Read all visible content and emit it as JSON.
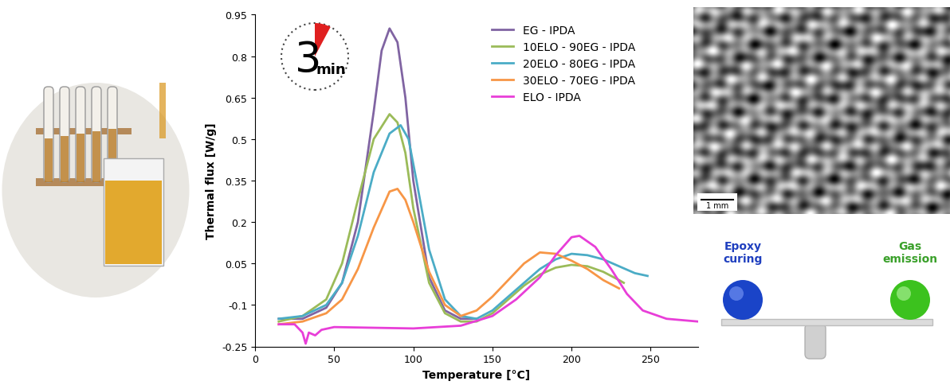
{
  "chart_data": {
    "type": "line",
    "x_label": "Temperature [°C]",
    "y_label": "Thermal flux [W/g]",
    "xlim": [
      0,
      280
    ],
    "xticks": [
      0,
      50,
      100,
      150,
      200,
      250
    ],
    "ylim": [
      -0.25,
      0.95
    ],
    "yticks": [
      -0.25,
      -0.1,
      0.05,
      0.2,
      0.35,
      0.5,
      0.65,
      0.8,
      0.95
    ],
    "grid": false,
    "legend": "upper right",
    "series": [
      {
        "name": "EG - IPDA",
        "color": "#8064a2",
        "x": [
          15,
          30,
          45,
          55,
          65,
          75,
          80,
          85,
          90,
          95,
          100,
          110,
          120,
          130,
          140
        ],
        "values": [
          -0.15,
          -0.15,
          -0.11,
          -0.02,
          0.2,
          0.6,
          0.82,
          0.9,
          0.85,
          0.65,
          0.35,
          0.0,
          -0.12,
          -0.15,
          -0.15
        ]
      },
      {
        "name": "10ELO - 90EG - IPDA",
        "color": "#9bbb59",
        "x": [
          15,
          30,
          45,
          55,
          65,
          75,
          85,
          90,
          95,
          100,
          110,
          120,
          130,
          140,
          150,
          160,
          170,
          180,
          190,
          200,
          210,
          220,
          230,
          233
        ],
        "values": [
          -0.16,
          -0.14,
          -0.08,
          0.05,
          0.28,
          0.5,
          0.59,
          0.56,
          0.45,
          0.25,
          -0.02,
          -0.13,
          -0.16,
          -0.16,
          -0.13,
          -0.08,
          -0.03,
          0.01,
          0.035,
          0.045,
          0.04,
          0.02,
          -0.01,
          -0.02
        ]
      },
      {
        "name": "20ELO - 80EG - IPDA",
        "color": "#4bacc6",
        "x": [
          15,
          30,
          45,
          55,
          65,
          75,
          85,
          92,
          97,
          102,
          110,
          120,
          130,
          140,
          150,
          160,
          170,
          180,
          190,
          200,
          210,
          220,
          230,
          240,
          248
        ],
        "values": [
          -0.15,
          -0.14,
          -0.1,
          -0.02,
          0.15,
          0.38,
          0.52,
          0.55,
          0.5,
          0.35,
          0.1,
          -0.08,
          -0.14,
          -0.15,
          -0.12,
          -0.07,
          -0.02,
          0.03,
          0.065,
          0.085,
          0.08,
          0.065,
          0.04,
          0.015,
          0.005
        ]
      },
      {
        "name": "30ELO - 70EG - IPDA",
        "color": "#f79646",
        "x": [
          15,
          30,
          45,
          55,
          65,
          75,
          85,
          90,
          95,
          100,
          110,
          120,
          130,
          140,
          150,
          160,
          170,
          180,
          190,
          200,
          210,
          220,
          230
        ],
        "values": [
          -0.17,
          -0.16,
          -0.13,
          -0.08,
          0.03,
          0.18,
          0.31,
          0.32,
          0.28,
          0.2,
          0.02,
          -0.1,
          -0.14,
          -0.12,
          -0.07,
          -0.01,
          0.05,
          0.09,
          0.085,
          0.06,
          0.03,
          -0.01,
          -0.04
        ]
      },
      {
        "name": "ELO - IPDA",
        "color": "#e83ed8",
        "x": [
          15,
          25,
          30,
          32,
          34,
          38,
          42,
          50,
          100,
          130,
          150,
          165,
          180,
          190,
          200,
          205,
          215,
          225,
          235,
          245,
          260,
          280
        ],
        "values": [
          -0.17,
          -0.17,
          -0.2,
          -0.24,
          -0.2,
          -0.21,
          -0.19,
          -0.18,
          -0.185,
          -0.175,
          -0.14,
          -0.08,
          0.0,
          0.08,
          0.145,
          0.15,
          0.11,
          0.03,
          -0.06,
          -0.12,
          -0.15,
          -0.16
        ]
      }
    ]
  },
  "graphic": {
    "timer": {
      "number": 3,
      "unit": "min"
    },
    "micrograph": {
      "scale_bar": "1 mm"
    },
    "balance": {
      "left": "Epoxy curing",
      "right": "Gas emission"
    }
  }
}
